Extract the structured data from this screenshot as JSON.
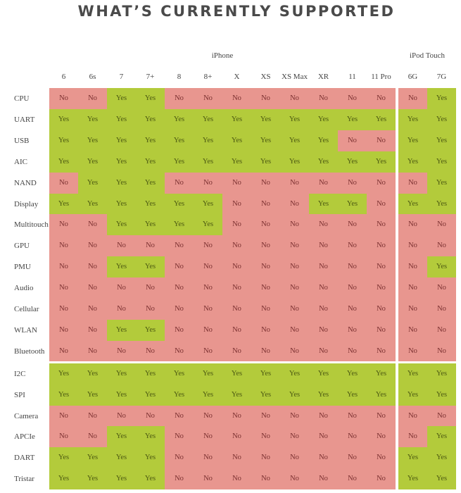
{
  "title": "WHAT’S CURRENTLY SUPPORTED",
  "groups": {
    "iphone": "iPhone",
    "ipod": "iPod Touch"
  },
  "colors": {
    "yes": "#b3cb3b",
    "no": "#e8968f"
  },
  "columns": [
    "6",
    "6s",
    "7",
    "7+",
    "8",
    "8+",
    "X",
    "XS",
    "XS Max",
    "XR",
    "11",
    "11 Pro",
    "6G",
    "7G"
  ],
  "rows": [
    {
      "label": "CPU",
      "values": [
        "No",
        "No",
        "Yes",
        "Yes",
        "No",
        "No",
        "No",
        "No",
        "No",
        "No",
        "No",
        "No",
        "No",
        "Yes"
      ]
    },
    {
      "label": "UART",
      "values": [
        "Yes",
        "Yes",
        "Yes",
        "Yes",
        "Yes",
        "Yes",
        "Yes",
        "Yes",
        "Yes",
        "Yes",
        "Yes",
        "Yes",
        "Yes",
        "Yes"
      ]
    },
    {
      "label": "USB",
      "values": [
        "Yes",
        "Yes",
        "Yes",
        "Yes",
        "Yes",
        "Yes",
        "Yes",
        "Yes",
        "Yes",
        "Yes",
        "No",
        "No",
        "Yes",
        "Yes"
      ]
    },
    {
      "label": "AIC",
      "values": [
        "Yes",
        "Yes",
        "Yes",
        "Yes",
        "Yes",
        "Yes",
        "Yes",
        "Yes",
        "Yes",
        "Yes",
        "Yes",
        "Yes",
        "Yes",
        "Yes"
      ]
    },
    {
      "label": "NAND",
      "values": [
        "No",
        "Yes",
        "Yes",
        "Yes",
        "No",
        "No",
        "No",
        "No",
        "No",
        "No",
        "No",
        "No",
        "No",
        "Yes"
      ]
    },
    {
      "label": "Display",
      "values": [
        "Yes",
        "Yes",
        "Yes",
        "Yes",
        "Yes",
        "Yes",
        "No",
        "No",
        "No",
        "Yes",
        "Yes",
        "No",
        "Yes",
        "Yes"
      ]
    },
    {
      "label": "Multitouch",
      "values": [
        "No",
        "No",
        "Yes",
        "Yes",
        "Yes",
        "Yes",
        "No",
        "No",
        "No",
        "No",
        "No",
        "No",
        "No",
        "No"
      ]
    },
    {
      "label": "GPU",
      "values": [
        "No",
        "No",
        "No",
        "No",
        "No",
        "No",
        "No",
        "No",
        "No",
        "No",
        "No",
        "No",
        "No",
        "No"
      ]
    },
    {
      "label": "PMU",
      "values": [
        "No",
        "No",
        "Yes",
        "Yes",
        "No",
        "No",
        "No",
        "No",
        "No",
        "No",
        "No",
        "No",
        "No",
        "Yes"
      ]
    },
    {
      "label": "Audio",
      "values": [
        "No",
        "No",
        "No",
        "No",
        "No",
        "No",
        "No",
        "No",
        "No",
        "No",
        "No",
        "No",
        "No",
        "No"
      ]
    },
    {
      "label": "Cellular",
      "values": [
        "No",
        "No",
        "No",
        "No",
        "No",
        "No",
        "No",
        "No",
        "No",
        "No",
        "No",
        "No",
        "No",
        "No"
      ]
    },
    {
      "label": "WLAN",
      "values": [
        "No",
        "No",
        "Yes",
        "Yes",
        "No",
        "No",
        "No",
        "No",
        "No",
        "No",
        "No",
        "No",
        "No",
        "No"
      ]
    },
    {
      "label": "Bluetooth",
      "values": [
        "No",
        "No",
        "No",
        "No",
        "No",
        "No",
        "No",
        "No",
        "No",
        "No",
        "No",
        "No",
        "No",
        "No"
      ]
    },
    {
      "label": "I2C",
      "values": [
        "Yes",
        "Yes",
        "Yes",
        "Yes",
        "Yes",
        "Yes",
        "Yes",
        "Yes",
        "Yes",
        "Yes",
        "Yes",
        "Yes",
        "Yes",
        "Yes"
      ]
    },
    {
      "label": "SPI",
      "values": [
        "Yes",
        "Yes",
        "Yes",
        "Yes",
        "Yes",
        "Yes",
        "Yes",
        "Yes",
        "Yes",
        "Yes",
        "Yes",
        "Yes",
        "Yes",
        "Yes"
      ]
    },
    {
      "label": "Camera",
      "values": [
        "No",
        "No",
        "No",
        "No",
        "No",
        "No",
        "No",
        "No",
        "No",
        "No",
        "No",
        "No",
        "No",
        "No"
      ]
    },
    {
      "label": "APCIe",
      "values": [
        "No",
        "No",
        "Yes",
        "Yes",
        "No",
        "No",
        "No",
        "No",
        "No",
        "No",
        "No",
        "No",
        "No",
        "Yes"
      ]
    },
    {
      "label": "DART",
      "values": [
        "Yes",
        "Yes",
        "Yes",
        "Yes",
        "No",
        "No",
        "No",
        "No",
        "No",
        "No",
        "No",
        "No",
        "Yes",
        "Yes"
      ]
    },
    {
      "label": "Tristar",
      "values": [
        "Yes",
        "Yes",
        "Yes",
        "Yes",
        "No",
        "No",
        "No",
        "No",
        "No",
        "No",
        "No",
        "No",
        "Yes",
        "Yes"
      ]
    }
  ]
}
